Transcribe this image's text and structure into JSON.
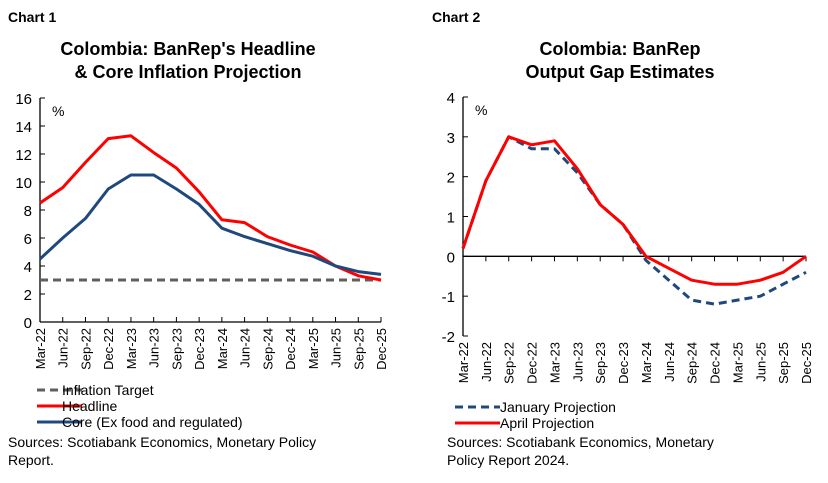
{
  "chart_data": [
    {
      "type": "line",
      "label": "Chart 1",
      "title": [
        "Colombia: BanRep's Headline",
        "& Core Inflation Projection"
      ],
      "unit": "%",
      "categories": [
        "Mar-22",
        "Jun-22",
        "Sep-22",
        "Dec-22",
        "Mar-23",
        "Jun-23",
        "Sep-23",
        "Dec-23",
        "Mar-24",
        "Jun-24",
        "Sep-24",
        "Dec-24",
        "Mar-25",
        "Jun-25",
        "Sep-25",
        "Dec-25"
      ],
      "ylim": [
        0,
        16
      ],
      "yticks": [
        0,
        2,
        4,
        6,
        8,
        10,
        12,
        14,
        16
      ],
      "series": [
        {
          "name": "Inflation Target",
          "color": "#5f5f5f",
          "dash": true,
          "values": [
            3,
            3,
            3,
            3,
            3,
            3,
            3,
            3,
            3,
            3,
            3,
            3,
            3,
            3,
            3,
            3
          ]
        },
        {
          "name": "Headline",
          "color": "#ff0000",
          "dash": false,
          "values": [
            8.5,
            9.6,
            11.4,
            13.1,
            13.3,
            12.1,
            11.0,
            9.3,
            7.3,
            7.1,
            6.1,
            5.5,
            5.0,
            4.0,
            3.3,
            3.0
          ]
        },
        {
          "name": "Core (Ex food and regulated)",
          "color": "#1f497d",
          "dash": false,
          "values": [
            4.5,
            6.0,
            7.4,
            9.5,
            10.5,
            10.5,
            9.5,
            8.4,
            6.7,
            6.1,
            5.6,
            5.1,
            4.7,
            4.0,
            3.6,
            3.4
          ]
        }
      ],
      "legend": "bottom",
      "sources": [
        "Sources: Scotiabank Economics, Monetary Policy",
        "Report."
      ]
    },
    {
      "type": "line",
      "label": "Chart 2",
      "title": [
        "Colombia: BanRep",
        "Output Gap Estimates"
      ],
      "unit": "%",
      "categories": [
        "Mar-22",
        "Jun-22",
        "Sep-22",
        "Dec-22",
        "Mar-23",
        "Jun-23",
        "Sep-23",
        "Dec-23",
        "Mar-24",
        "Jun-24",
        "Sep-24",
        "Dec-24",
        "Mar-25",
        "Jun-25",
        "Sep-25",
        "Dec-25"
      ],
      "ylim": [
        -2,
        4
      ],
      "yticks": [
        -2,
        -1,
        0,
        1,
        2,
        3,
        4
      ],
      "series": [
        {
          "name": "January Projection",
          "color": "#1f497d",
          "dash": true,
          "values": [
            0.2,
            1.9,
            3.0,
            2.7,
            2.7,
            2.1,
            1.3,
            0.8,
            -0.1,
            -0.6,
            -1.1,
            -1.2,
            -1.1,
            -1.0,
            -0.7,
            -0.4
          ]
        },
        {
          "name": "April Projection",
          "color": "#ff0000",
          "dash": false,
          "values": [
            0.2,
            1.9,
            3.0,
            2.8,
            2.9,
            2.2,
            1.3,
            0.8,
            0,
            -0.3,
            -0.6,
            -0.7,
            -0.7,
            -0.6,
            -0.4,
            0
          ]
        }
      ],
      "legend": "bottom",
      "sources": [
        "Sources: Scotiabank Economics, Monetary",
        "Policy Report 2024."
      ]
    }
  ]
}
